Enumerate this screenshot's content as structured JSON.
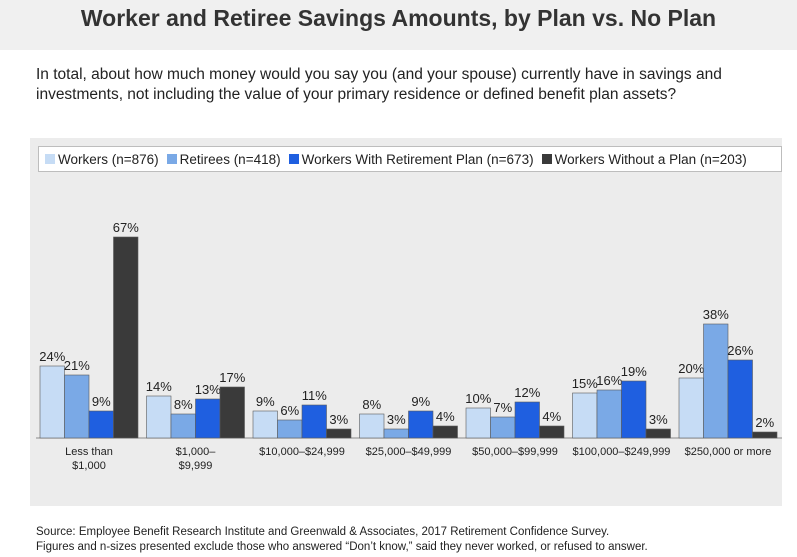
{
  "title": "Worker and Retiree Savings Amounts, by Plan vs. No Plan",
  "question": "In total, about how much money would you say you (and your spouse) currently have in savings and investments, not including the value of your primary residence or defined benefit plan assets?",
  "source_line1": "Source:  Employee Benefit Research Institute and Greenwald & Associates, 2017 Retirement Confidence Survey.",
  "source_line2": "Figures and n-sizes presented exclude those who answered “Don’t know,” said they never worked, or refused to answer.",
  "chart_data": {
    "type": "bar",
    "categories": [
      "Less than\n$1,000",
      "$1,000–\n$9,999",
      "$10,000–$24,999",
      "$25,000–$49,999",
      "$50,000–$99,999",
      "$100,000–$249,999",
      "$250,000 or more"
    ],
    "series": [
      {
        "name": "Workers (n=876)",
        "color": "#c6dcf5",
        "values": [
          24,
          14,
          9,
          8,
          10,
          15,
          20
        ]
      },
      {
        "name": "Retirees (n=418)",
        "color": "#7aa9e6",
        "values": [
          21,
          8,
          6,
          3,
          7,
          16,
          38
        ]
      },
      {
        "name": "Workers With Retirement Plan (n=673)",
        "color": "#1f5fe0",
        "values": [
          9,
          13,
          11,
          9,
          12,
          19,
          26
        ]
      },
      {
        "name": "Workers Without a Plan (n=203)",
        "color": "#3a3a3a",
        "values": [
          67,
          17,
          3,
          4,
          4,
          3,
          2
        ]
      }
    ],
    "value_suffix": "%",
    "ylim": [
      0,
      70
    ],
    "grid": false,
    "legend_position": "top"
  }
}
